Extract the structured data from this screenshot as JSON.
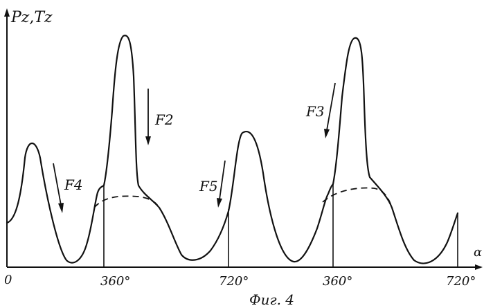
{
  "y_axis_label": "Pz,Tz",
  "x_axis_label": "α",
  "origin_label": "0",
  "tick_labels": [
    "360°",
    "720°",
    "360°",
    "720°"
  ],
  "force_labels": {
    "f2": "F2",
    "f3": "F3",
    "f4": "F4",
    "f5": "F5"
  },
  "caption": "Фиг. 4"
}
